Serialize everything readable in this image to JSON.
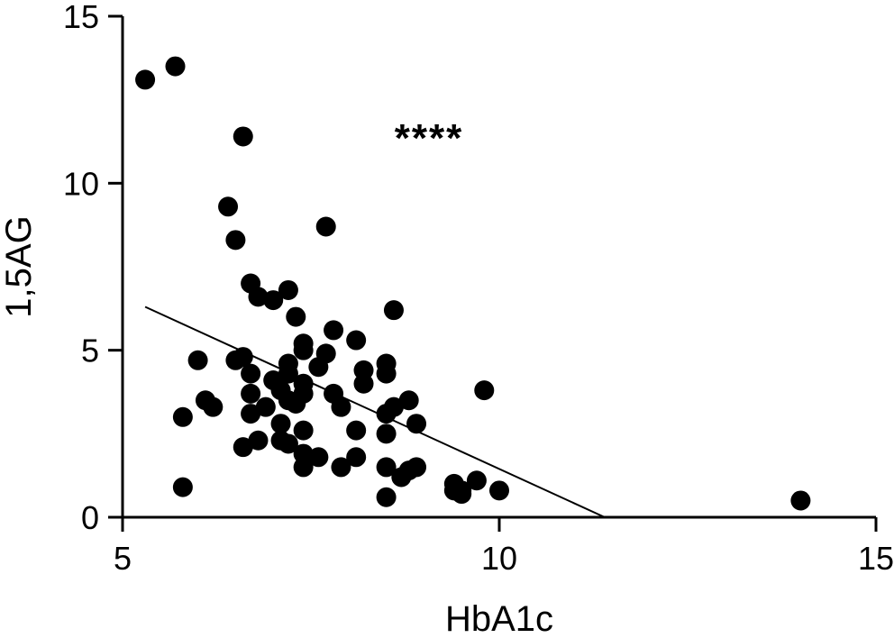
{
  "chart_data": {
    "type": "scatter",
    "xlabel": "HbA1c",
    "ylabel": "1,5AG",
    "xlim": [
      5,
      15
    ],
    "ylim": [
      0,
      15
    ],
    "xticks": [
      "5",
      "10",
      "15"
    ],
    "yticks": [
      "0",
      "5",
      "10",
      "15"
    ],
    "grid": false,
    "annotation": "****",
    "fit_line": {
      "x": [
        5.3,
        11.4
      ],
      "y": [
        6.3,
        0
      ]
    },
    "points": [
      {
        "x": 5.3,
        "y": 13.1
      },
      {
        "x": 5.7,
        "y": 13.5
      },
      {
        "x": 6.6,
        "y": 11.4
      },
      {
        "x": 6.4,
        "y": 9.3
      },
      {
        "x": 6.5,
        "y": 8.3
      },
      {
        "x": 7.7,
        "y": 8.7
      },
      {
        "x": 6.7,
        "y": 7.0
      },
      {
        "x": 6.8,
        "y": 6.6
      },
      {
        "x": 7.0,
        "y": 6.5
      },
      {
        "x": 7.2,
        "y": 6.8
      },
      {
        "x": 7.3,
        "y": 6.0
      },
      {
        "x": 8.6,
        "y": 6.2
      },
      {
        "x": 7.8,
        "y": 5.6
      },
      {
        "x": 8.1,
        "y": 5.3
      },
      {
        "x": 7.4,
        "y": 5.2
      },
      {
        "x": 7.4,
        "y": 5.0
      },
      {
        "x": 7.7,
        "y": 4.9
      },
      {
        "x": 6.0,
        "y": 4.7
      },
      {
        "x": 6.5,
        "y": 4.7
      },
      {
        "x": 6.6,
        "y": 4.8
      },
      {
        "x": 7.2,
        "y": 4.6
      },
      {
        "x": 7.6,
        "y": 4.5
      },
      {
        "x": 8.2,
        "y": 4.4
      },
      {
        "x": 8.5,
        "y": 4.6
      },
      {
        "x": 8.5,
        "y": 4.3
      },
      {
        "x": 6.7,
        "y": 4.3
      },
      {
        "x": 7.2,
        "y": 4.3
      },
      {
        "x": 7.0,
        "y": 4.1
      },
      {
        "x": 7.4,
        "y": 4.0
      },
      {
        "x": 8.2,
        "y": 4.0
      },
      {
        "x": 9.8,
        "y": 3.8
      },
      {
        "x": 6.7,
        "y": 3.7
      },
      {
        "x": 7.1,
        "y": 3.8
      },
      {
        "x": 7.4,
        "y": 3.7
      },
      {
        "x": 7.8,
        "y": 3.7
      },
      {
        "x": 7.2,
        "y": 3.5
      },
      {
        "x": 7.3,
        "y": 3.4
      },
      {
        "x": 6.1,
        "y": 3.5
      },
      {
        "x": 6.2,
        "y": 3.3
      },
      {
        "x": 6.9,
        "y": 3.3
      },
      {
        "x": 7.9,
        "y": 3.3
      },
      {
        "x": 8.8,
        "y": 3.5
      },
      {
        "x": 8.6,
        "y": 3.3
      },
      {
        "x": 5.8,
        "y": 3.0
      },
      {
        "x": 6.7,
        "y": 3.1
      },
      {
        "x": 7.1,
        "y": 2.8
      },
      {
        "x": 8.5,
        "y": 3.1
      },
      {
        "x": 8.9,
        "y": 2.8
      },
      {
        "x": 7.4,
        "y": 2.6
      },
      {
        "x": 8.1,
        "y": 2.6
      },
      {
        "x": 8.5,
        "y": 2.5
      },
      {
        "x": 6.6,
        "y": 2.1
      },
      {
        "x": 6.8,
        "y": 2.3
      },
      {
        "x": 7.1,
        "y": 2.3
      },
      {
        "x": 7.2,
        "y": 2.2
      },
      {
        "x": 7.4,
        "y": 1.9
      },
      {
        "x": 7.6,
        "y": 1.8
      },
      {
        "x": 8.1,
        "y": 1.8
      },
      {
        "x": 7.4,
        "y": 1.5
      },
      {
        "x": 7.9,
        "y": 1.5
      },
      {
        "x": 8.5,
        "y": 1.5
      },
      {
        "x": 8.8,
        "y": 1.4
      },
      {
        "x": 8.9,
        "y": 1.5
      },
      {
        "x": 8.7,
        "y": 1.2
      },
      {
        "x": 9.7,
        "y": 1.1
      },
      {
        "x": 9.4,
        "y": 1.0
      },
      {
        "x": 9.5,
        "y": 0.8
      },
      {
        "x": 9.4,
        "y": 0.8
      },
      {
        "x": 10.0,
        "y": 0.8
      },
      {
        "x": 9.5,
        "y": 0.7
      },
      {
        "x": 5.8,
        "y": 0.9
      },
      {
        "x": 8.5,
        "y": 0.6
      },
      {
        "x": 14.0,
        "y": 0.5
      }
    ]
  }
}
